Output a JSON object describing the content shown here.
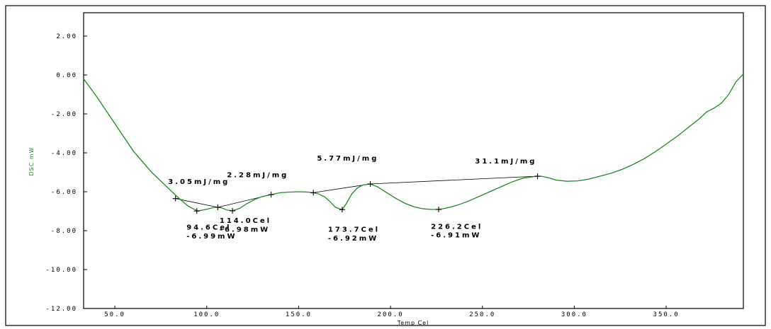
{
  "chart_data": {
    "type": "line",
    "xlabel": "Temp Cel",
    "ylabel": "DSC mW",
    "xlim": [
      33,
      392
    ],
    "ylim": [
      -12,
      3.2
    ],
    "x_ticks": [
      50,
      100,
      150,
      200,
      250,
      300,
      350
    ],
    "x_tick_labels": [
      "50.0",
      "100.0",
      "150.0",
      "200.0",
      "250.0",
      "300.0",
      "350.0"
    ],
    "y_ticks": [
      2,
      0,
      -2,
      -4,
      -6,
      -8,
      -10,
      -12
    ],
    "y_tick_labels": [
      "2.00",
      "0.00",
      "-2.00",
      "-4.00",
      "-6.00",
      "-8.00",
      "-10.00",
      "-12.00"
    ],
    "grid": false,
    "colors": {
      "curve": "#1f8a1f",
      "ylabel": "#1f8a1f",
      "annotation": "#000000"
    },
    "series": [
      {
        "x": [
          33,
          40,
          50,
          60,
          70,
          80,
          85,
          90,
          95,
          100,
          105,
          108,
          111,
          114,
          118,
          122,
          126,
          130,
          135,
          140,
          145,
          150,
          155,
          160,
          164,
          167,
          170,
          173.7,
          176,
          179,
          182,
          185,
          189,
          193,
          198,
          203,
          208,
          213,
          218,
          222,
          226.2,
          230,
          236,
          242,
          248,
          254,
          260,
          266,
          272,
          278,
          282,
          286,
          290,
          296,
          302,
          308,
          314,
          320,
          326,
          332,
          338,
          344,
          350,
          356,
          362,
          368,
          372,
          376,
          380,
          384,
          388,
          392
        ],
        "y": [
          -0.2,
          -1.1,
          -2.5,
          -3.9,
          -5.0,
          -5.9,
          -6.35,
          -6.75,
          -6.99,
          -6.9,
          -6.78,
          -6.82,
          -6.94,
          -6.98,
          -6.85,
          -6.6,
          -6.4,
          -6.25,
          -6.15,
          -6.05,
          -6.02,
          -6.0,
          -6.02,
          -6.08,
          -6.25,
          -6.5,
          -6.8,
          -6.92,
          -6.6,
          -6.1,
          -5.8,
          -5.65,
          -5.6,
          -5.75,
          -6.05,
          -6.35,
          -6.6,
          -6.78,
          -6.88,
          -6.91,
          -6.91,
          -6.85,
          -6.7,
          -6.5,
          -6.25,
          -6.0,
          -5.75,
          -5.5,
          -5.3,
          -5.22,
          -5.2,
          -5.28,
          -5.4,
          -5.46,
          -5.44,
          -5.35,
          -5.2,
          -5.05,
          -4.85,
          -4.6,
          -4.3,
          -3.95,
          -3.55,
          -3.15,
          -2.7,
          -2.25,
          -1.9,
          -1.7,
          -1.45,
          -1.0,
          -0.35,
          0.05
        ]
      }
    ],
    "baselines": [
      {
        "x": [
          83,
          106
        ],
        "y": [
          -6.35,
          -6.8
        ]
      },
      {
        "x": [
          106,
          135
        ],
        "y": [
          -6.8,
          -6.15
        ]
      },
      {
        "x": [
          158,
          189
        ],
        "y": [
          -6.05,
          -5.6
        ]
      },
      {
        "x": [
          189,
          280
        ],
        "y": [
          -5.6,
          -5.2
        ]
      }
    ],
    "markers": [
      {
        "x": 83,
        "y": -6.35
      },
      {
        "x": 94.6,
        "y": -6.99
      },
      {
        "x": 106,
        "y": -6.8
      },
      {
        "x": 114,
        "y": -6.98
      },
      {
        "x": 135,
        "y": -6.15
      },
      {
        "x": 158,
        "y": -6.05
      },
      {
        "x": 173.7,
        "y": -6.92
      },
      {
        "x": 189,
        "y": -5.6
      },
      {
        "x": 226.2,
        "y": -6.91
      },
      {
        "x": 280,
        "y": -5.2
      }
    ],
    "annotations": [
      {
        "text": "3.05mJ/mg",
        "x": 79,
        "y": -5.6
      },
      {
        "text": "2.28mJ/mg",
        "x": 111,
        "y": -5.25
      },
      {
        "text": "5.77mJ/mg",
        "x": 160,
        "y": -4.4
      },
      {
        "text": "31.1mJ/mg",
        "x": 246,
        "y": -4.55
      },
      {
        "text": "94.6Cel",
        "x": 89,
        "y": -7.95
      },
      {
        "text": "-6.99mW",
        "x": 89,
        "y": -8.4
      },
      {
        "text": "114.0Cel",
        "x": 107,
        "y": -7.6
      },
      {
        "text": "-6.98mW",
        "x": 107,
        "y": -8.05
      },
      {
        "text": "173.7Cel",
        "x": 166,
        "y": -8.05
      },
      {
        "text": "-6.92mW",
        "x": 166,
        "y": -8.5
      },
      {
        "text": "226.2Cel",
        "x": 222,
        "y": -7.9
      },
      {
        "text": "-6.91mW",
        "x": 222,
        "y": -8.35
      }
    ]
  }
}
